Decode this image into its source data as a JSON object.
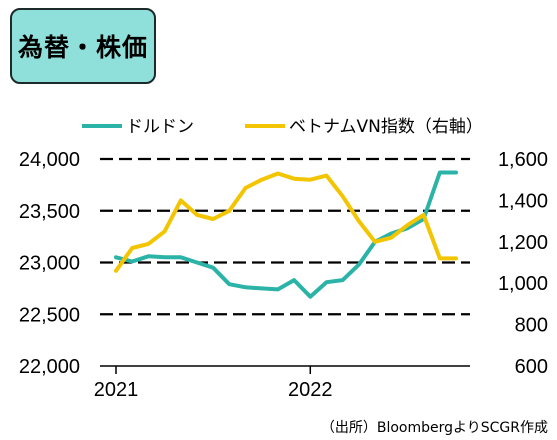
{
  "title": "為替・株価",
  "source_note": "（出所）BloombergよりSCGR作成",
  "chart_data": {
    "type": "line",
    "x_tick_labels": [
      "2021",
      "2022"
    ],
    "ylim_left": [
      22000,
      24000
    ],
    "ylim_right": [
      600,
      1600
    ],
    "y_ticks_left": [
      "22,000",
      "22,500",
      "23,000",
      "23,500",
      "24,000"
    ],
    "y_ticks_right": [
      "600",
      "800",
      "1,000",
      "1,200",
      "1,400",
      "1,600"
    ],
    "grid": "dashed horizontal",
    "legend_position": "top",
    "x": [
      "2021-01",
      "2021-02",
      "2021-03",
      "2021-04",
      "2021-05",
      "2021-06",
      "2021-07",
      "2021-08",
      "2021-09",
      "2021-10",
      "2021-11",
      "2021-12",
      "2022-01",
      "2022-02",
      "2022-03",
      "2022-04",
      "2022-05",
      "2022-06",
      "2022-07",
      "2022-08",
      "2022-09",
      "2022-10"
    ],
    "series": [
      {
        "name": "ドルドン",
        "axis": "left",
        "color": "#2ab3a6",
        "values": [
          23050,
          23010,
          23060,
          23050,
          23050,
          23000,
          22950,
          22790,
          22760,
          22750,
          22740,
          22830,
          22670,
          22810,
          22830,
          22980,
          23200,
          23280,
          23330,
          23420,
          23870,
          23870
        ]
      },
      {
        "name": "ベトナムVN指数（右軸）",
        "axis": "right",
        "color": "#f2c500",
        "values": [
          1060,
          1170,
          1190,
          1250,
          1400,
          1330,
          1310,
          1350,
          1460,
          1500,
          1530,
          1505,
          1500,
          1520,
          1420,
          1300,
          1200,
          1220,
          1280,
          1330,
          1120,
          1120
        ]
      }
    ]
  }
}
